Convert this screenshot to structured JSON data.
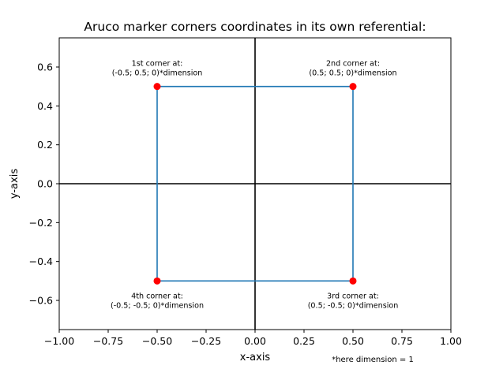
{
  "chart_data": {
    "type": "line",
    "title": "Aruco marker corners coordinates in its own referential:",
    "xlabel": "x-axis",
    "ylabel": "y-axis",
    "xlim": [
      -1.0,
      1.0
    ],
    "ylim": [
      -0.75,
      0.75
    ],
    "xticks": [
      -1.0,
      -0.75,
      -0.5,
      -0.25,
      0.0,
      0.25,
      0.5,
      0.75,
      1.0
    ],
    "xtick_labels": [
      "−1.00",
      "−0.75",
      "−0.50",
      "−0.25",
      "0.00",
      "0.25",
      "0.50",
      "0.75",
      "1.00"
    ],
    "yticks": [
      0.6,
      0.4,
      0.2,
      0.0,
      -0.2,
      -0.4,
      -0.6
    ],
    "ytick_labels": [
      "0.6",
      "0.4",
      "0.2",
      "0.0",
      "−0.2",
      "−0.4",
      "−0.6"
    ],
    "grid": false,
    "axis_lines": [
      0.0
    ],
    "square": {
      "x": [
        -0.5,
        0.5,
        0.5,
        -0.5,
        -0.5
      ],
      "y": [
        0.5,
        0.5,
        -0.5,
        -0.5,
        0.5
      ],
      "color": "#1f77b4"
    },
    "corners": {
      "x": [
        -0.5,
        0.5,
        0.5,
        -0.5
      ],
      "y": [
        0.5,
        0.5,
        -0.5,
        -0.5
      ],
      "color": "#ff0000"
    },
    "annotations": [
      {
        "x": -0.5,
        "y": 0.5,
        "lines": [
          "1st corner at:",
          "(-0.5; 0.5; 0)*dimension"
        ],
        "position": "above"
      },
      {
        "x": 0.5,
        "y": 0.5,
        "lines": [
          "2nd corner at:",
          "(0.5; 0.5; 0)*dimension"
        ],
        "position": "above"
      },
      {
        "x": 0.5,
        "y": -0.5,
        "lines": [
          "3rd corner at:",
          "(0.5; -0.5; 0)*dimension"
        ],
        "position": "below"
      },
      {
        "x": -0.5,
        "y": -0.5,
        "lines": [
          "4th corner at:",
          "(-0.5; -0.5; 0)*dimension"
        ],
        "position": "below"
      }
    ],
    "footnote": "*here dimension = 1"
  }
}
